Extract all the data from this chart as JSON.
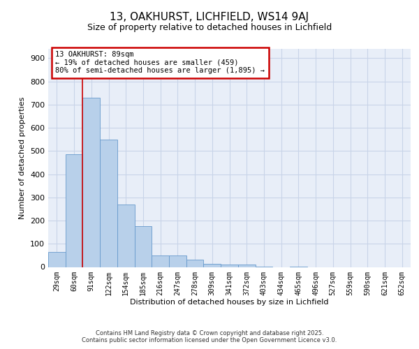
{
  "title": "13, OAKHURST, LICHFIELD, WS14 9AJ",
  "subtitle": "Size of property relative to detached houses in Lichfield",
  "xlabel": "Distribution of detached houses by size in Lichfield",
  "ylabel": "Number of detached properties",
  "categories": [
    "29sqm",
    "60sqm",
    "91sqm",
    "122sqm",
    "154sqm",
    "185sqm",
    "216sqm",
    "247sqm",
    "278sqm",
    "309sqm",
    "341sqm",
    "372sqm",
    "403sqm",
    "434sqm",
    "465sqm",
    "496sqm",
    "527sqm",
    "559sqm",
    "590sqm",
    "621sqm",
    "652sqm"
  ],
  "values": [
    65,
    485,
    730,
    550,
    270,
    175,
    50,
    50,
    33,
    15,
    12,
    10,
    3,
    0,
    3,
    0,
    0,
    0,
    0,
    0,
    0
  ],
  "bar_color": "#b8d0ea",
  "bar_edge_color": "#6699cc",
  "vline_color": "#cc0000",
  "vline_pos": 1.5,
  "annotation_text": "13 OAKHURST: 89sqm\n← 19% of detached houses are smaller (459)\n80% of semi-detached houses are larger (1,895) →",
  "annotation_box_color": "#cc0000",
  "annotation_box_fill": "#ffffff",
  "ylim": [
    0,
    940
  ],
  "yticks": [
    0,
    100,
    200,
    300,
    400,
    500,
    600,
    700,
    800,
    900
  ],
  "grid_color": "#c8d4e8",
  "background_color": "#e8eef8",
  "footer_line1": "Contains HM Land Registry data © Crown copyright and database right 2025.",
  "footer_line2": "Contains public sector information licensed under the Open Government Licence v3.0."
}
